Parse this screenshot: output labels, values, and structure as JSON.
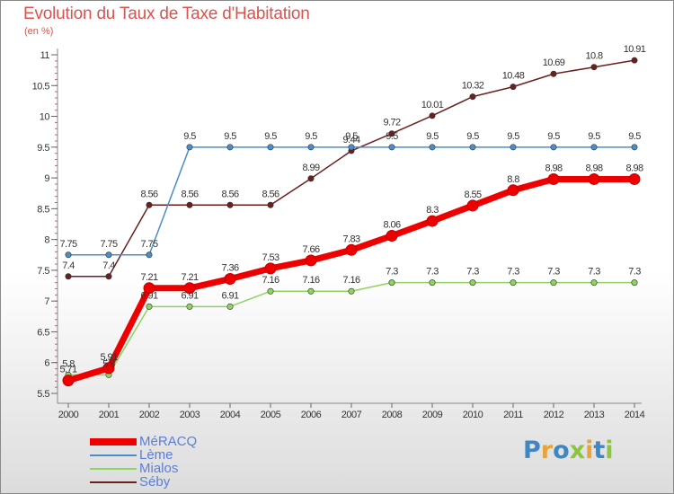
{
  "chart_data": {
    "type": "line",
    "title": "Evolution du Taux de Taxe d'Habitation",
    "subtitle": "(en %)",
    "x": [
      "2000",
      "2001",
      "2002",
      "2003",
      "2004",
      "2005",
      "2006",
      "2007",
      "2008",
      "2009",
      "2010",
      "2011",
      "2012",
      "2013",
      "2014"
    ],
    "ylim": [
      5.5,
      11
    ],
    "yticks": [
      "5.5",
      "6",
      "6.5",
      "7",
      "7.5",
      "8",
      "8.5",
      "9",
      "9.5",
      "10",
      "10.5",
      "11"
    ],
    "grid": false,
    "legend_position": "bottom-left",
    "series": [
      {
        "name": "MéRACQ",
        "color": "#ee0000",
        "values": [
          5.71,
          5.91,
          7.21,
          7.21,
          7.36,
          7.53,
          7.66,
          7.83,
          8.06,
          8.3,
          8.55,
          8.8,
          8.98,
          8.98,
          8.98
        ],
        "labels": [
          "5.71",
          "5.91",
          "7.21",
          "7.21",
          "7.36",
          "7.53",
          "7.66",
          "7.83",
          "8.06",
          "8.3",
          "8.55",
          "8.8",
          "8.98",
          "8.98",
          "8.98"
        ]
      },
      {
        "name": "Lème",
        "color": "#4a8ec9",
        "values": [
          7.75,
          7.75,
          7.75,
          9.5,
          9.5,
          9.5,
          9.5,
          9.5,
          9.5,
          9.5,
          9.5,
          9.5,
          9.5,
          9.5,
          9.5
        ],
        "labels": [
          "7.75",
          "7.75",
          "7.75",
          "9.5",
          "9.5",
          "9.5",
          "9.5",
          "9.5",
          "9.5",
          "9.5",
          "9.5",
          "9.5",
          "9.5",
          "9.5",
          "9.5"
        ]
      },
      {
        "name": "Mialos",
        "color": "#8fd45e",
        "values": [
          5.8,
          5.8,
          6.91,
          6.91,
          6.91,
          7.16,
          7.16,
          7.16,
          7.3,
          7.3,
          7.3,
          7.3,
          7.3,
          7.3,
          7.3
        ],
        "labels": [
          "5.8",
          "5.8",
          "6.91",
          "6.91",
          "6.91",
          "7.16",
          "7.16",
          "7.16",
          "7.3",
          "7.3",
          "7.3",
          "7.3",
          "7.3",
          "7.3",
          "7.3"
        ]
      },
      {
        "name": "Séby",
        "color": "#6b1f1f",
        "values": [
          7.4,
          7.4,
          8.56,
          8.56,
          8.56,
          8.56,
          8.99,
          9.44,
          9.72,
          10.01,
          10.32,
          10.48,
          10.69,
          10.8,
          10.91
        ],
        "labels": [
          "7.4",
          "7.4",
          "8.56",
          "8.56",
          "8.56",
          "8.56",
          "8.99",
          "9.44",
          "9.72",
          "10.01",
          "10.32",
          "10.48",
          "10.69",
          "10.8",
          "10.91"
        ]
      }
    ]
  },
  "logo": {
    "letters": [
      {
        "ch": "P",
        "color": "#3f86c4"
      },
      {
        "ch": "r",
        "color": "#e8a43a"
      },
      {
        "ch": "o",
        "color": "#3f86c4"
      },
      {
        "ch": "x",
        "color": "#8cc63f"
      },
      {
        "ch": "i",
        "color": "#e8a43a"
      },
      {
        "ch": "t",
        "color": "#3f86c4"
      },
      {
        "ch": "i",
        "color": "#8cc63f"
      }
    ]
  }
}
